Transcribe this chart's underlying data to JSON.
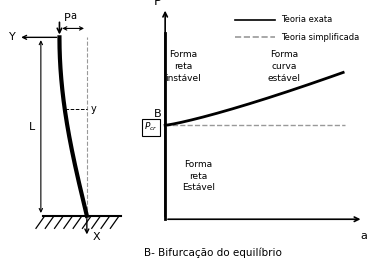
{
  "title": "B- Bifurcação do equilíbrio",
  "legend_solid": "Teoria exata",
  "legend_dashed": "Teoria simplificada",
  "label_P": "P",
  "label_a_axis": "a",
  "label_Y": "Y",
  "label_X": "X",
  "label_L": "L",
  "label_a_dim": "a",
  "label_y": "y",
  "label_P_top": "P",
  "label_B": "B",
  "label_Pcr": "$P_{cr}$",
  "label_forma_reta_instavel": "Forma\nreta\ninstável",
  "label_forma_curva_estavel": "Forma\ncurva\nestável",
  "label_forma_reta_estavel": "Forma\nreta\nEstável",
  "Pcr": 0.48,
  "background_color": "#ffffff",
  "line_color": "#000000",
  "gray_color": "#999999"
}
